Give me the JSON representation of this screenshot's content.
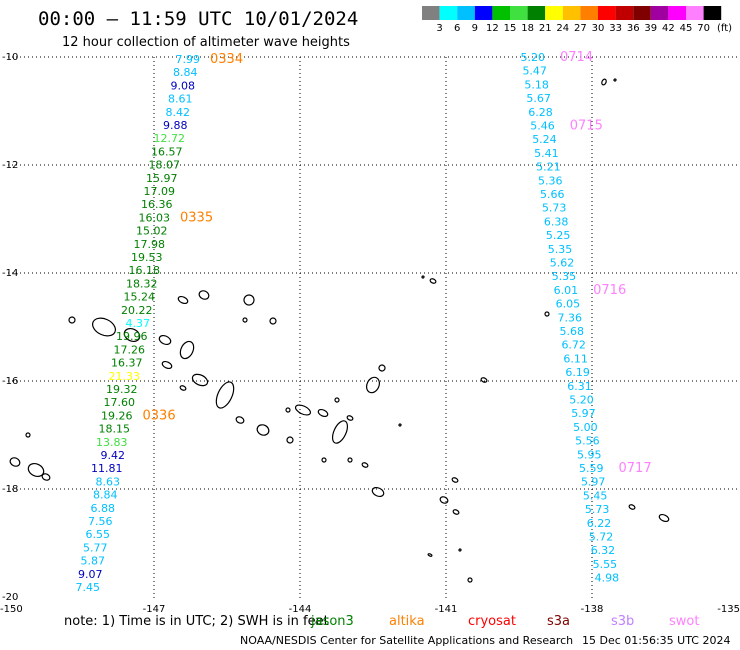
{
  "header": {
    "title": "00:00 — 11:59 UTC 10/01/2024",
    "subtitle": "12 hour collection of altimeter wave heights"
  },
  "colorbar": {
    "colors": [
      "#808080",
      "#00ffff",
      "#00c0ff",
      "#0000ff",
      "#00c000",
      "#40e040",
      "#008000",
      "#ffff00",
      "#ffc000",
      "#ff8000",
      "#ff0000",
      "#c00000",
      "#800000",
      "#a000a0",
      "#ff00ff",
      "#ff80ff",
      "#000000"
    ],
    "labels": [
      "3",
      "6",
      "9",
      "12",
      "15",
      "18",
      "21",
      "24",
      "27",
      "30",
      "33",
      "36",
      "39",
      "42",
      "45",
      "70"
    ],
    "unit": "(ft)"
  },
  "axes": {
    "y_labels": [
      "-10",
      "-12",
      "-14",
      "-16",
      "-18",
      "-20"
    ],
    "x_labels": [
      "-150",
      "-147",
      "-144",
      "-141",
      "-138",
      "-135"
    ]
  },
  "track_left": {
    "items": [
      {
        "v": "7.99",
        "c": "#00c0ff"
      },
      {
        "v": "8.84",
        "c": "#00c0ff"
      },
      {
        "v": "9.08",
        "c": "#0000c0"
      },
      {
        "v": "8.61",
        "c": "#00c0ff"
      },
      {
        "v": "8.42",
        "c": "#00c0ff"
      },
      {
        "v": "9.88",
        "c": "#0000c0"
      },
      {
        "v": "12.72",
        "c": "#40e040"
      },
      {
        "v": "16.57",
        "c": "#008000"
      },
      {
        "v": "18.07",
        "c": "#008000"
      },
      {
        "v": "15.97",
        "c": "#008000"
      },
      {
        "v": "17.09",
        "c": "#008000"
      },
      {
        "v": "16.36",
        "c": "#008000"
      },
      {
        "v": "16.03",
        "c": "#008000"
      },
      {
        "v": "15.02",
        "c": "#008000"
      },
      {
        "v": "17.98",
        "c": "#008000"
      },
      {
        "v": "19.53",
        "c": "#008000"
      },
      {
        "v": "16.18",
        "c": "#008000"
      },
      {
        "v": "18.32",
        "c": "#008000"
      },
      {
        "v": "15.24",
        "c": "#008000"
      },
      {
        "v": "20.22",
        "c": "#008000"
      },
      {
        "v": "4.37",
        "c": "#00ffff"
      },
      {
        "v": "19.96",
        "c": "#008000"
      },
      {
        "v": "17.26",
        "c": "#008000"
      },
      {
        "v": "16.37",
        "c": "#008000"
      },
      {
        "v": "21.33",
        "c": "#ffff00"
      },
      {
        "v": "19.32",
        "c": "#008000"
      },
      {
        "v": "17.60",
        "c": "#008000"
      },
      {
        "v": "19.26",
        "c": "#008000"
      },
      {
        "v": "18.15",
        "c": "#008000"
      },
      {
        "v": "13.83",
        "c": "#40e040"
      },
      {
        "v": "9.42",
        "c": "#0000c0"
      },
      {
        "v": "11.81",
        "c": "#0000c0"
      },
      {
        "v": "8.63",
        "c": "#00c0ff"
      },
      {
        "v": "8.84",
        "c": "#00c0ff"
      },
      {
        "v": "6.88",
        "c": "#00c0ff"
      },
      {
        "v": "7.56",
        "c": "#00c0ff"
      },
      {
        "v": "6.55",
        "c": "#00c0ff"
      },
      {
        "v": "5.77",
        "c": "#00c0ff"
      },
      {
        "v": "5.87",
        "c": "#00c0ff"
      },
      {
        "v": "9.07",
        "c": "#0000c0"
      },
      {
        "v": "7.45",
        "c": "#00c0ff"
      }
    ],
    "passes": [
      {
        "t": "0334",
        "i": 0
      },
      {
        "t": "0335",
        "i": 12
      },
      {
        "t": "0336",
        "i": 27
      }
    ]
  },
  "track_right": {
    "items": [
      {
        "v": "5.20",
        "c": "#00c0ff"
      },
      {
        "v": "5.47",
        "c": "#00c0ff"
      },
      {
        "v": "5.18",
        "c": "#00c0ff"
      },
      {
        "v": "5.67",
        "c": "#00c0ff"
      },
      {
        "v": "6.28",
        "c": "#00c0ff"
      },
      {
        "v": "5.46",
        "c": "#00c0ff"
      },
      {
        "v": "5.24",
        "c": "#00c0ff"
      },
      {
        "v": "5.41",
        "c": "#00c0ff"
      },
      {
        "v": "5.21",
        "c": "#00c0ff"
      },
      {
        "v": "5.36",
        "c": "#00c0ff"
      },
      {
        "v": "5.66",
        "c": "#00c0ff"
      },
      {
        "v": "5.73",
        "c": "#00c0ff"
      },
      {
        "v": "6.38",
        "c": "#00c0ff"
      },
      {
        "v": "5.25",
        "c": "#00c0ff"
      },
      {
        "v": "5.35",
        "c": "#00c0ff"
      },
      {
        "v": "5.62",
        "c": "#00c0ff"
      },
      {
        "v": "5.35",
        "c": "#00c0ff"
      },
      {
        "v": "6.01",
        "c": "#00c0ff"
      },
      {
        "v": "6.05",
        "c": "#00c0ff"
      },
      {
        "v": "7.36",
        "c": "#00c0ff"
      },
      {
        "v": "5.68",
        "c": "#00c0ff"
      },
      {
        "v": "6.72",
        "c": "#00c0ff"
      },
      {
        "v": "6.11",
        "c": "#00c0ff"
      },
      {
        "v": "6.19",
        "c": "#00c0ff"
      },
      {
        "v": "6.31",
        "c": "#00c0ff"
      },
      {
        "v": "5.20",
        "c": "#00c0ff"
      },
      {
        "v": "5.97",
        "c": "#00c0ff"
      },
      {
        "v": "5.00",
        "c": "#00c0ff"
      },
      {
        "v": "5.56",
        "c": "#00c0ff"
      },
      {
        "v": "5.95",
        "c": "#00c0ff"
      },
      {
        "v": "5.59",
        "c": "#00c0ff"
      },
      {
        "v": "5.97",
        "c": "#00c0ff"
      },
      {
        "v": "5.45",
        "c": "#00c0ff"
      },
      {
        "v": "5.73",
        "c": "#00c0ff"
      },
      {
        "v": "6.22",
        "c": "#00c0ff"
      },
      {
        "v": "5.72",
        "c": "#00c0ff"
      },
      {
        "v": "6.32",
        "c": "#00c0ff"
      },
      {
        "v": "5.55",
        "c": "#00c0ff"
      },
      {
        "v": "4.98",
        "c": "#00c0ff"
      }
    ],
    "passes": [
      {
        "t": "0714",
        "i": 0
      },
      {
        "t": "0715",
        "i": 5
      },
      {
        "t": "0716",
        "i": 17
      },
      {
        "t": "0717",
        "i": 30
      }
    ]
  },
  "note": "note: 1) Time is in UTC; 2) SWH is in feet",
  "satellites": [
    {
      "name": "jason3",
      "color": "#008000"
    },
    {
      "name": "altika",
      "color": "#ff8000"
    },
    {
      "name": "cryosat",
      "color": "#ff0000"
    },
    {
      "name": "s3a",
      "color": "#800000"
    },
    {
      "name": "s3b",
      "color": "#c080ff"
    },
    {
      "name": "swot",
      "color": "#ff80ff"
    }
  ],
  "footer": {
    "agency": "NOAA/NESDIS Center for Satellite Applications and Research",
    "timestamp": "15 Dec 01:56:35 UTC 2024"
  },
  "colors": {
    "pass_left": "#ff8000",
    "pass_right": "#ff80ff",
    "grid": "#000000"
  }
}
